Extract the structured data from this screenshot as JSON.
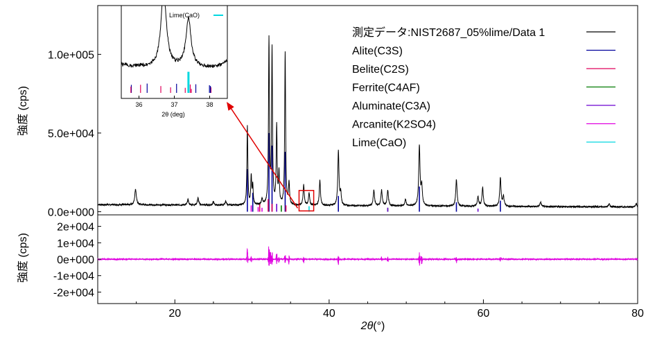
{
  "chart_data": {
    "type": "line",
    "xlabel_symbol": "2θ",
    "xlabel_unit": "(°)",
    "xlim": [
      10,
      80
    ],
    "x_ticks": [
      20,
      40,
      60,
      80
    ],
    "main": {
      "ylabel": "強度 (cps)",
      "ylim": [
        -2000,
        131000
      ],
      "y_ticks": [
        {
          "value": 0,
          "label": "0.0e+000"
        },
        {
          "value": 50000,
          "label": "5.0e+004"
        },
        {
          "value": 100000,
          "label": "1.0e+005"
        }
      ],
      "background": 5000,
      "peaks": [
        {
          "x": 14.9,
          "y": 10000,
          "w": 0.12
        },
        {
          "x": 21.7,
          "y": 3500,
          "w": 0.1
        },
        {
          "x": 23.0,
          "y": 4500,
          "w": 0.1
        },
        {
          "x": 25.0,
          "y": 2000,
          "w": 0.1
        },
        {
          "x": 26.6,
          "y": 2500,
          "w": 0.1
        },
        {
          "x": 29.4,
          "y": 50000,
          "w": 0.07
        },
        {
          "x": 29.9,
          "y": 18000,
          "w": 0.07
        },
        {
          "x": 30.1,
          "y": 12000,
          "w": 0.07
        },
        {
          "x": 31.3,
          "y": 4000,
          "w": 0.08
        },
        {
          "x": 32.2,
          "y": 105000,
          "w": 0.07
        },
        {
          "x": 32.6,
          "y": 98000,
          "w": 0.07
        },
        {
          "x": 33.2,
          "y": 50000,
          "w": 0.07
        },
        {
          "x": 33.5,
          "y": 20000,
          "w": 0.07
        },
        {
          "x": 34.3,
          "y": 97000,
          "w": 0.07
        },
        {
          "x": 34.8,
          "y": 14000,
          "w": 0.08
        },
        {
          "x": 36.7,
          "y": 13000,
          "w": 0.09
        },
        {
          "x": 37.4,
          "y": 8000,
          "w": 0.09
        },
        {
          "x": 38.8,
          "y": 16000,
          "w": 0.09
        },
        {
          "x": 41.2,
          "y": 35000,
          "w": 0.09
        },
        {
          "x": 41.5,
          "y": 8000,
          "w": 0.09
        },
        {
          "x": 45.8,
          "y": 10000,
          "w": 0.1
        },
        {
          "x": 46.8,
          "y": 10000,
          "w": 0.1
        },
        {
          "x": 47.6,
          "y": 10000,
          "w": 0.1
        },
        {
          "x": 49.9,
          "y": 4000,
          "w": 0.1
        },
        {
          "x": 51.7,
          "y": 38000,
          "w": 0.1
        },
        {
          "x": 52.0,
          "y": 12000,
          "w": 0.1
        },
        {
          "x": 56.5,
          "y": 17000,
          "w": 0.1
        },
        {
          "x": 59.3,
          "y": 6000,
          "w": 0.1
        },
        {
          "x": 59.9,
          "y": 12000,
          "w": 0.1
        },
        {
          "x": 62.2,
          "y": 18000,
          "w": 0.1
        },
        {
          "x": 62.6,
          "y": 6000,
          "w": 0.1
        },
        {
          "x": 67.4,
          "y": 3000,
          "w": 0.1
        },
        {
          "x": 76.3,
          "y": 2000,
          "w": 0.1
        },
        {
          "x": 79.8,
          "y": 2000,
          "w": 0.1
        }
      ],
      "ref_bars": {
        "Alite(C3S)": [
          [
            29.4,
            27000
          ],
          [
            30.1,
            12000
          ],
          [
            32.2,
            50000
          ],
          [
            32.6,
            42000
          ],
          [
            34.3,
            38000
          ],
          [
            41.2,
            10000
          ],
          [
            51.7,
            16000
          ],
          [
            56.5,
            6000
          ],
          [
            62.2,
            7000
          ]
        ],
        "Belite(C2S)": [
          [
            31.0,
            5000
          ],
          [
            32.1,
            8000
          ],
          [
            32.6,
            5000
          ],
          [
            34.4,
            4000
          ]
        ],
        "Ferrite(C4AF)": [
          [
            33.8,
            4000
          ],
          [
            47.6,
            2500
          ]
        ],
        "Aluminate(C3A)": [
          [
            33.2,
            5000
          ],
          [
            47.6,
            2500
          ],
          [
            59.3,
            2000
          ]
        ],
        "Arcanite(K2SO4)": [
          [
            29.9,
            4000
          ],
          [
            30.8,
            3000
          ],
          [
            31.3,
            2500
          ]
        ],
        "Lime(CaO)": [
          [
            37.4,
            3500
          ]
        ]
      },
      "highlight_box": {
        "x": [
          36.1,
          38.0
        ],
        "y": [
          500,
          13500
        ]
      }
    },
    "residual": {
      "ylabel": "強度 (cps)",
      "ylim": [
        -27000,
        27000
      ],
      "y_ticks": [
        {
          "value": 20000,
          "label": "2e+004"
        },
        {
          "value": 10000,
          "label": "1e+004"
        },
        {
          "value": 0,
          "label": "0e+000"
        },
        {
          "value": -10000,
          "label": "-1e+004"
        },
        {
          "value": -20000,
          "label": "-2e+004"
        }
      ],
      "features": [
        [
          29.4,
          6000
        ],
        [
          29.9,
          -2000
        ],
        [
          32.2,
          9000
        ],
        [
          32.4,
          6000
        ],
        [
          32.6,
          5000
        ],
        [
          33.2,
          4000
        ],
        [
          33.5,
          -2000
        ],
        [
          34.3,
          3000
        ],
        [
          34.8,
          -3000
        ],
        [
          36.7,
          -2000
        ],
        [
          41.2,
          -3000
        ],
        [
          46.8,
          2000
        ],
        [
          47.6,
          -2000
        ],
        [
          51.7,
          6000
        ],
        [
          52.0,
          -4000
        ],
        [
          56.5,
          -2000
        ],
        [
          62.2,
          2000
        ]
      ]
    },
    "inset": {
      "xlabel": "2θ (deg)",
      "xlim": [
        35.5,
        38.5
      ],
      "x_ticks": [
        36,
        37,
        38
      ],
      "legend_label": "Lime(CaO)"
    },
    "legend": {
      "placement": "top-right",
      "entries": [
        {
          "name": "測定データ:NIST2687_05%lime/Data 1",
          "color": "#000000"
        },
        {
          "name": "Alite(C3S)",
          "color": "#00009c"
        },
        {
          "name": "Belite(C2S)",
          "color": "#e0005a"
        },
        {
          "name": "Ferrite(C4AF)",
          "color": "#007a00"
        },
        {
          "name": "Aluminate(C3A)",
          "color": "#6a00d0"
        },
        {
          "name": "Arcanite(K2SO4)",
          "color": "#e000e0"
        },
        {
          "name": "Lime(CaO)",
          "color": "#00d8e0"
        }
      ]
    },
    "colors": {
      "observed": "#000000",
      "residual": "#e000e0",
      "highlight": "#e00000",
      "arrow": "#e00000"
    }
  }
}
